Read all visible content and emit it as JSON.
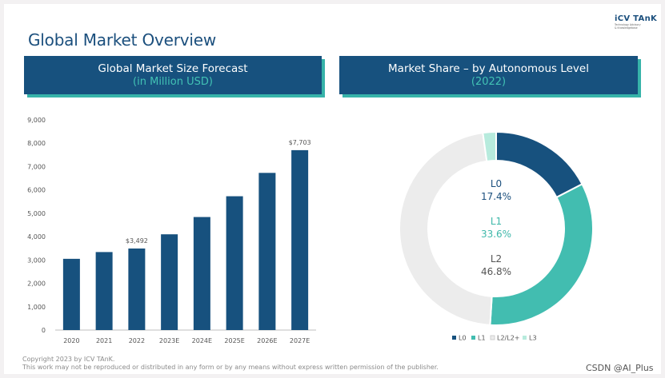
{
  "page": {
    "title": "Global Market Overview",
    "brand": {
      "logo": "iCV TAnK",
      "tagline_1": "Technology Advisory",
      "tagline_2": "& Knowledgebase"
    },
    "left_header": {
      "line1": "Global Market Size Forecast",
      "line2": "(in Million USD)"
    },
    "right_header": {
      "line1": "Market Share – by Autonomous Level",
      "line2": "(2022)"
    },
    "footer": {
      "copyright": "Copyright  2023 by ICV TAnK.",
      "notice": "This work may not be reproduced or distributed in any form or by any means without express written permission of the publisher."
    },
    "watermark": "CSDN @AI_Plus"
  },
  "colors": {
    "navy": "#17517e",
    "teal": "#42bdb0",
    "light_gray": "#ececec",
    "mint": "#b7ebdd"
  },
  "chart_data": [
    {
      "type": "bar",
      "title": "Global Market Size Forecast (in Million USD)",
      "categories": [
        "2020",
        "2021",
        "2022",
        "2023E",
        "2024E",
        "2025E",
        "2026E",
        "2027E"
      ],
      "values": [
        3050,
        3340,
        3492,
        4100,
        4840,
        5730,
        6730,
        7703
      ],
      "ylim": [
        0,
        9000
      ],
      "yticks": [
        "0",
        "1,000",
        "2,000",
        "3,000",
        "4,000",
        "5,000",
        "6,000",
        "7,000",
        "8,000",
        "9,000"
      ],
      "ytick_values": [
        0,
        1000,
        2000,
        3000,
        4000,
        5000,
        6000,
        7000,
        8000,
        9000
      ],
      "data_labels": {
        "2": "$3,492",
        "7": "$7,703"
      },
      "color": "#17517e"
    },
    {
      "type": "pie",
      "title": "Market Share – by Autonomous Level (2022)",
      "labels": [
        "L0",
        "L1",
        "L2/L2+",
        "L3"
      ],
      "values": [
        17.4,
        33.6,
        46.8,
        2.2
      ],
      "value_labels": [
        "17.4%",
        "33.6%",
        "46.8%",
        ""
      ],
      "center_labels": [
        {
          "name": "L0",
          "value": "17.4%"
        },
        {
          "name": "L1",
          "value": "33.6%"
        },
        {
          "name": "L2",
          "value": "46.8%"
        }
      ],
      "colors": [
        "#17517e",
        "#42bdb0",
        "#ececec",
        "#b7ebdd"
      ],
      "legend": "bottom"
    }
  ]
}
